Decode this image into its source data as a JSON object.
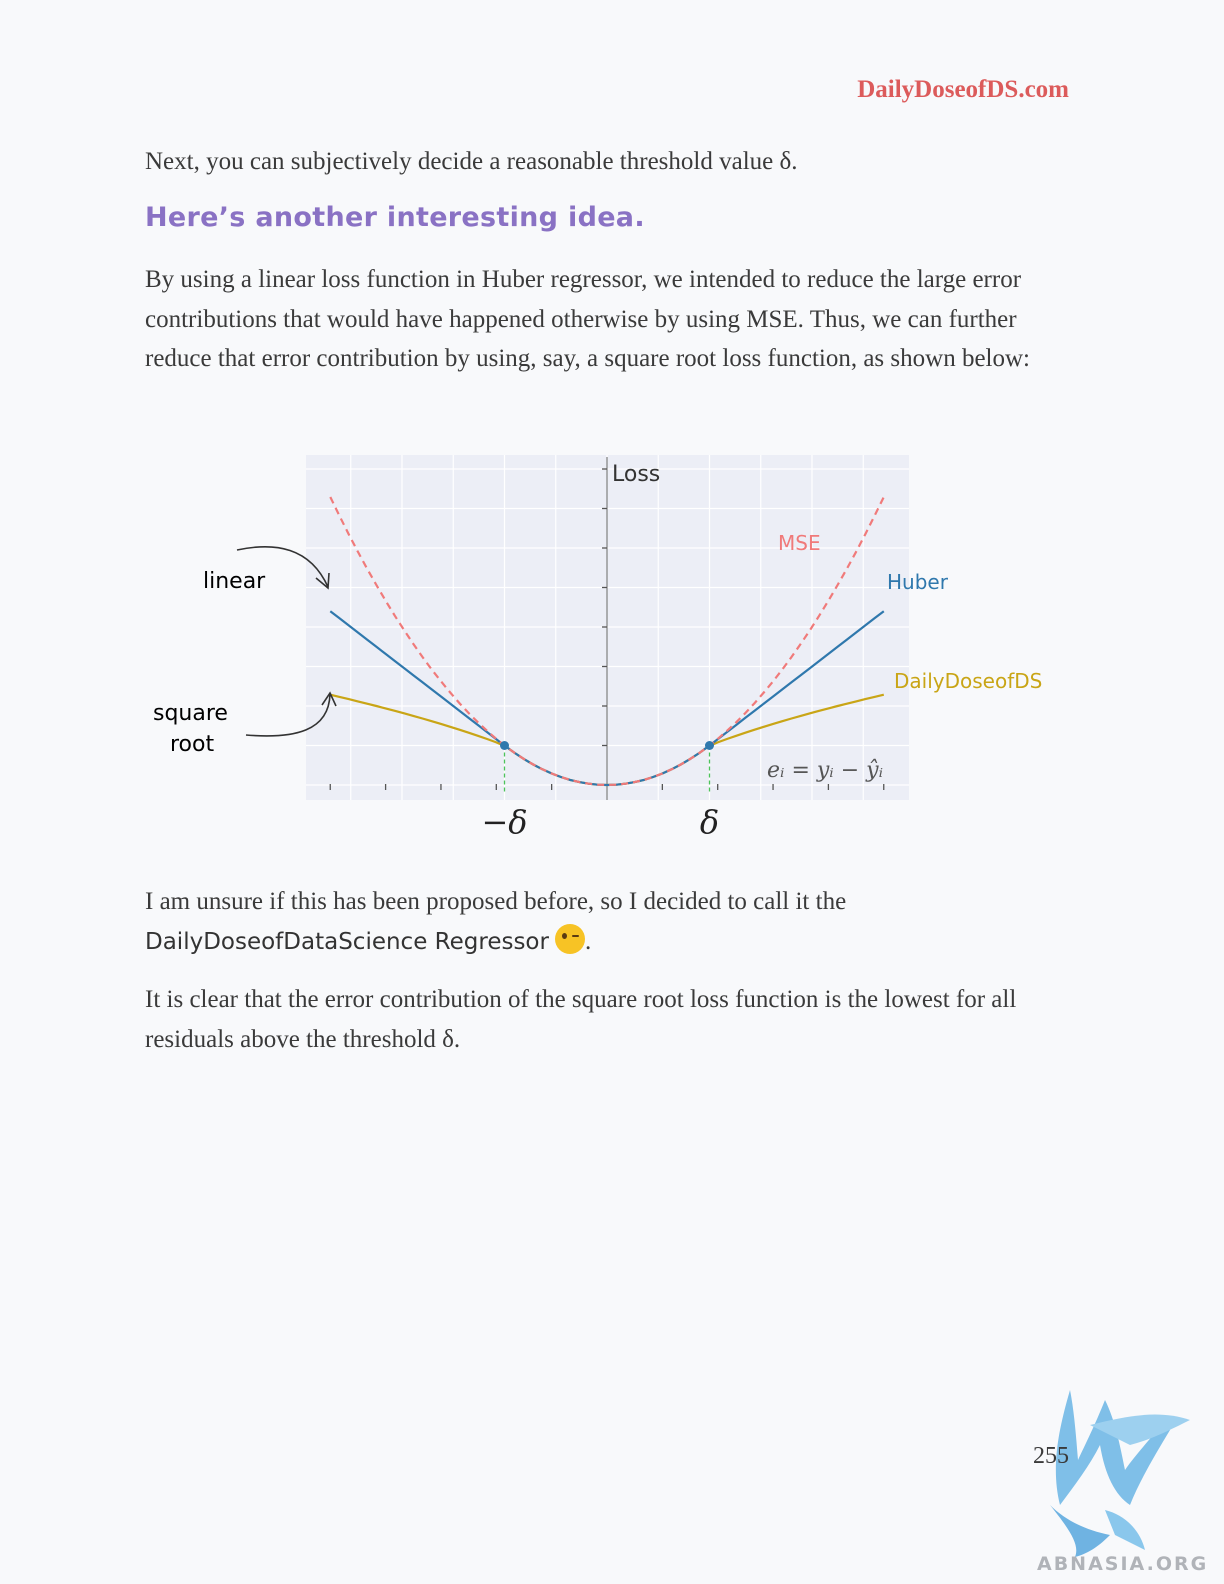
{
  "header": {
    "site": "DailyDoseofDS.com"
  },
  "paragraphs": {
    "p1": "Next, you can subjectively decide a reasonable threshold value δ.",
    "heading": "Here’s another interesting idea.",
    "p2": "By using a linear loss function in Huber regressor, we intended to reduce the large error contributions that would have happened otherwise by using MSE. Thus, we can further reduce that error contribution by using, say, a square root loss function, as shown below:",
    "p3_pre": "I am unsure if this has been proposed before, so I decided to call it the",
    "p3_name": "DailyDoseofDataScience Regressor",
    "p3_post": ".",
    "p4": "It is clear that the error contribution of the square root loss function is the lowest for all residuals above the threshold δ."
  },
  "figure": {
    "annotations": {
      "linear": "linear",
      "square": "square",
      "root": "root"
    },
    "equation": "eᵢ = yᵢ − ŷᵢ"
  },
  "chart_data": {
    "type": "line",
    "title": "",
    "ylabel": "Loss",
    "xlabel": "",
    "x_ticks": [
      "−δ",
      "δ"
    ],
    "delta": 1,
    "xlim": [
      -2.7,
      2.7
    ],
    "ylim": [
      0,
      7.6
    ],
    "series": [
      {
        "name": "MSE",
        "style": "dashed",
        "color": "#f07a7a",
        "x": [
          -2.7,
          -2,
          -1.5,
          -1,
          -0.5,
          0,
          0.5,
          1,
          1.5,
          2,
          2.7
        ],
        "y": [
          7.29,
          4,
          2.25,
          1,
          0.25,
          0,
          0.25,
          1,
          2.25,
          4,
          7.29
        ]
      },
      {
        "name": "Huber",
        "style": "solid",
        "color": "#2f78ad",
        "x": [
          -2.7,
          -2,
          -1,
          -0.5,
          0,
          0.5,
          1,
          2,
          2.7
        ],
        "y": [
          4.4,
          3.0,
          1.0,
          0.25,
          0,
          0.25,
          1.0,
          3.0,
          4.4
        ]
      },
      {
        "name": "DailyDoseofDS",
        "style": "solid",
        "color": "#c9a516",
        "x": [
          -2.7,
          -2,
          -1,
          -0.5,
          0,
          0.5,
          1,
          2,
          2.7
        ],
        "y": [
          2.54,
          1.83,
          1.0,
          0.25,
          0,
          0.25,
          1.0,
          1.83,
          2.54
        ]
      }
    ],
    "threshold_points": [
      {
        "x": -1,
        "y": 1
      },
      {
        "x": 1,
        "y": 1
      }
    ]
  },
  "footer": {
    "page": "255",
    "watermark": "ABNASIA.ORG"
  }
}
